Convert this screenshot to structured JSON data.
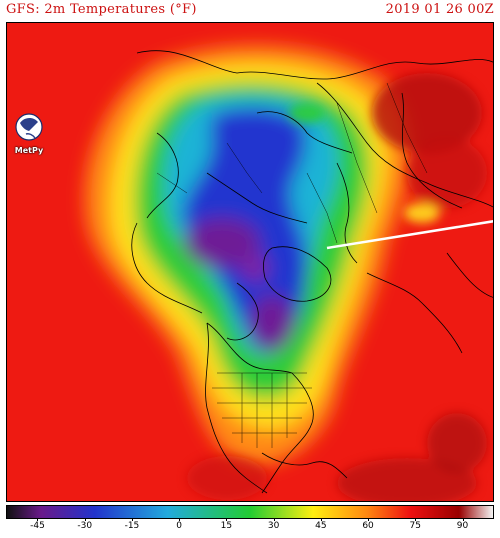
{
  "title": {
    "left": "GFS: 2m Temperatures (°F)",
    "right": "2019 01 26 00Z"
  },
  "logo": {
    "text": "MetPy",
    "icon": "metpy-globe-icon"
  },
  "map": {
    "projection": "north-polar-stereographic",
    "variable": "2m temperature",
    "units": "°F",
    "features": [
      "coastlines",
      "country-borders",
      "us-state-borders"
    ]
  },
  "colorbar": {
    "min": -55,
    "max": 100,
    "tick_labels": [
      "-45",
      "-30",
      "-15",
      "0",
      "15",
      "30",
      "45",
      "60",
      "75",
      "90"
    ],
    "tick_values": [
      -45,
      -30,
      -15,
      0,
      15,
      30,
      45,
      60,
      75,
      90
    ],
    "colors": {
      "coldest": "#111111",
      "purple": "#6a1a8a",
      "blue": "#2233cc",
      "cyan": "#22aadd",
      "green": "#22cc33",
      "yellow": "#ffee11",
      "orange": "#ff8811",
      "red": "#ee1111",
      "dark_red": "#990000",
      "hottest": "#f4f4f4"
    }
  }
}
